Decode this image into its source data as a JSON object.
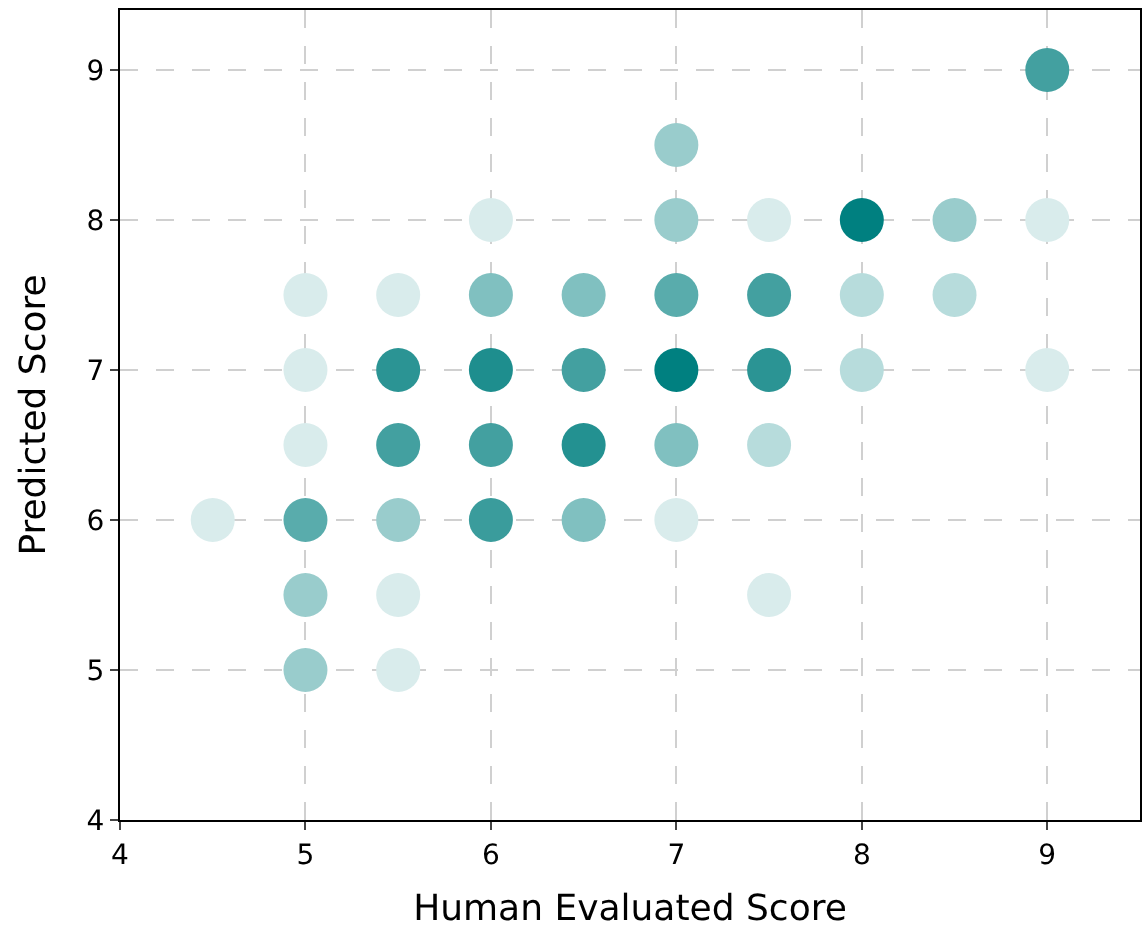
{
  "chart_data": {
    "type": "scatter",
    "xlabel": "Human Evaluated Score",
    "ylabel": "Predicted Score",
    "xlim": [
      4,
      9.5
    ],
    "xticks": [
      4,
      5,
      6,
      7,
      8,
      9
    ],
    "ylim": [
      4,
      9.4
    ],
    "yticks": [
      4,
      5,
      6,
      7,
      8,
      9
    ],
    "grid": true,
    "marker": "circle",
    "x": [
      4.5,
      5,
      5,
      5,
      5,
      5,
      5,
      5.5,
      5.5,
      5.5,
      5.5,
      5.5,
      5.5,
      6,
      6,
      6,
      6,
      6,
      6.5,
      6.5,
      6.5,
      6.5,
      7,
      7,
      7,
      7,
      7,
      7,
      7.5,
      7.5,
      7.5,
      7.5,
      7.5,
      8,
      8,
      8,
      8.5,
      8.5,
      9,
      9,
      9
    ],
    "values": [
      6,
      7.5,
      7,
      6.5,
      6,
      5.5,
      5,
      7.5,
      7,
      6.5,
      6,
      5.5,
      5,
      8,
      7.5,
      7,
      6.5,
      6,
      7.5,
      7,
      6.5,
      6,
      8.5,
      8,
      7.5,
      7,
      6.5,
      6,
      8,
      7.5,
      7,
      6.5,
      5.5,
      8,
      7.5,
      7,
      8,
      7.5,
      9,
      8,
      7
    ],
    "colors": [
      "#d9ecec",
      "#d9ecec",
      "#d9ecec",
      "#d9ecec",
      "#59acac",
      "#99cccc",
      "#99cccc",
      "#d9ecec",
      "#2b9494",
      "#43a0a0",
      "#99cccc",
      "#d9ecec",
      "#d9ecec",
      "#d9ecec",
      "#80c0c0",
      "#1e8e8e",
      "#43a0a0",
      "#3a9c9c",
      "#80c0c0",
      "#43a0a0",
      "#239191",
      "#80c0c0",
      "#99cccc",
      "#99cccc",
      "#59acac",
      "#008080",
      "#80c0c0",
      "#d9ecec",
      "#d9ecec",
      "#43a0a0",
      "#2b9494",
      "#b7dcdc",
      "#d9ecec",
      "#008080",
      "#b7dcdc",
      "#b7dcdc",
      "#99cccc",
      "#b7dcdc",
      "#43a0a0",
      "#d9ecec",
      "#d9ecec"
    ]
  }
}
